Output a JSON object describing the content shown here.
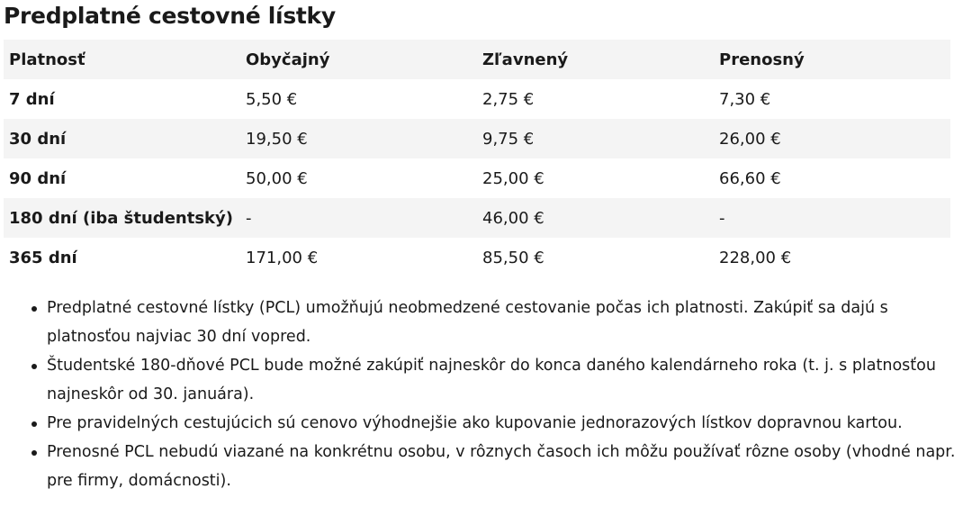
{
  "title": "Predplatné cestovné lístky",
  "table": {
    "headers": [
      "Platnosť",
      "Obyčajný",
      "Zľavnený",
      "Prenosný"
    ],
    "rows": [
      [
        "7 dní",
        "5,50 €",
        "2,75 €",
        "7,30 €"
      ],
      [
        "30 dní",
        "19,50 €",
        "9,75 €",
        "26,00 €"
      ],
      [
        "90 dní",
        "50,00 €",
        "25,00 €",
        "66,60 €"
      ],
      [
        "180 dní (iba študentský)",
        "-",
        "46,00 €",
        "-"
      ],
      [
        "365 dní",
        "171,00 €",
        "85,50 €",
        "228,00 €"
      ]
    ]
  },
  "notes": [
    "Predplatné cestovné lístky  (PCL) umožňujú neobmedzené cestovanie počas ich platnosti. Zakúpiť sa dajú s platnosťou najviac 30 dní vopred.",
    "Študentské 180-dňové PCL bude možné zakúpiť najneskôr do konca daného kalendárneho roka (t. j. s platnosťou najneskôr od 30. januára).",
    "Pre pravidelných cestujúcich sú cenovo výhodnejšie ako kupovanie jednorazových lístkov dopravnou kartou.",
    "Prenosné PCL nebudú viazané na konkrétnu osobu, v rôznych časoch ich môžu používať rôzne osoby (vhodné napr. pre firmy, domácnosti)."
  ]
}
